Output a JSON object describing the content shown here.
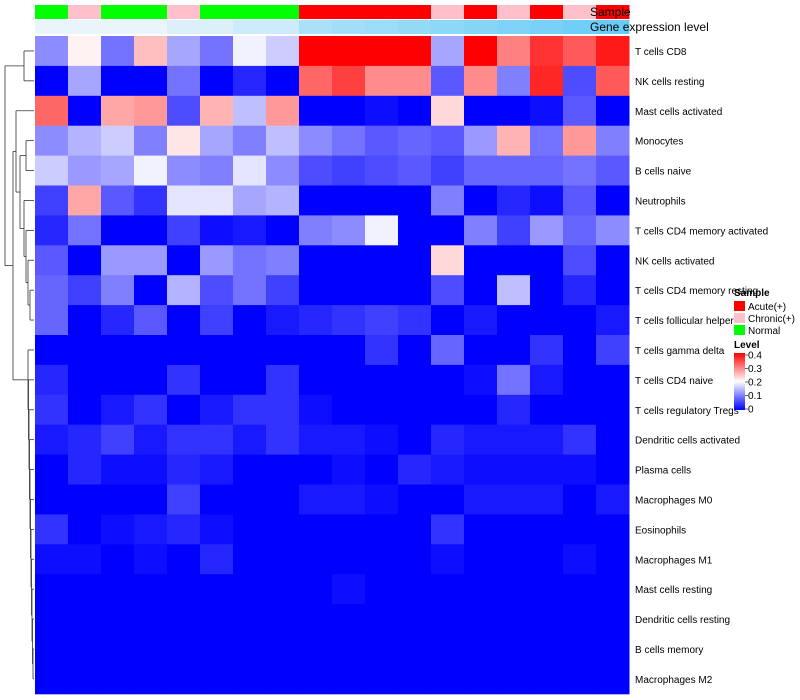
{
  "chart_data": {
    "type": "heatmap",
    "annotation_labels": {
      "sample": "Sample",
      "gene": "Gene expression level"
    },
    "sample_groups": [
      "Normal",
      "Chronic(+)",
      "Normal",
      "Normal",
      "Chronic(+)",
      "Normal",
      "Normal",
      "Normal",
      "Acute(+)",
      "Acute(+)",
      "Acute(+)",
      "Acute(+)",
      "Chronic(+)",
      "Acute(+)",
      "Chronic(+)",
      "Acute(+)",
      "Chronic(+)",
      "Acute(+)"
    ],
    "gene_expression": [
      0.0,
      0.0,
      0.0,
      0.0,
      0.1,
      0.1,
      0.2,
      0.2,
      0.45,
      0.5,
      0.55,
      0.6,
      0.65,
      0.7,
      0.75,
      0.8,
      0.85,
      0.9
    ],
    "rows": [
      "T cells CD8",
      "NK cells resting",
      "Mast cells activated",
      "Monocytes",
      "B cells naive",
      "Neutrophils",
      "T cells CD4 memory activated",
      "NK cells activated",
      "T cells CD4 memory resting",
      "T cells follicular helper",
      "T cells gamma delta",
      "T cells CD4 naive",
      "T cells regulatory  Tregs",
      "Dendritic cells activated",
      "Plasma cells",
      "Macrophages M0",
      "Eosinophils",
      "Macrophages M1",
      "Mast cells resting",
      "Dendritic cells resting",
      "B cells memory",
      "Macrophages M2"
    ],
    "values": [
      [
        0.11,
        0.21,
        0.09,
        0.25,
        0.13,
        0.09,
        0.19,
        0.16,
        0.4,
        0.4,
        0.4,
        0.4,
        0.13,
        0.4,
        0.3,
        0.36,
        0.33,
        0.38
      ],
      [
        0.0,
        0.13,
        0.0,
        0.0,
        0.09,
        0.0,
        0.03,
        0.0,
        0.32,
        0.35,
        0.29,
        0.29,
        0.07,
        0.29,
        0.1,
        0.37,
        0.06,
        0.33
      ],
      [
        0.32,
        0.0,
        0.27,
        0.28,
        0.06,
        0.26,
        0.15,
        0.28,
        0.0,
        0.0,
        0.01,
        0.0,
        0.23,
        0.0,
        0.0,
        0.01,
        0.07,
        0.0
      ],
      [
        0.11,
        0.14,
        0.16,
        0.1,
        0.22,
        0.13,
        0.1,
        0.15,
        0.11,
        0.09,
        0.07,
        0.08,
        0.07,
        0.12,
        0.26,
        0.09,
        0.28,
        0.1
      ],
      [
        0.16,
        0.12,
        0.13,
        0.19,
        0.11,
        0.1,
        0.18,
        0.11,
        0.06,
        0.05,
        0.06,
        0.07,
        0.05,
        0.08,
        0.08,
        0.08,
        0.09,
        0.07
      ],
      [
        0.05,
        0.27,
        0.07,
        0.04,
        0.18,
        0.18,
        0.13,
        0.14,
        0.0,
        0.0,
        0.0,
        0.0,
        0.1,
        0.0,
        0.03,
        0.01,
        0.07,
        0.0
      ],
      [
        0.03,
        0.09,
        0.0,
        0.0,
        0.05,
        0.01,
        0.02,
        0.0,
        0.1,
        0.11,
        0.19,
        0.0,
        0.0,
        0.1,
        0.05,
        0.12,
        0.08,
        0.11
      ],
      [
        0.07,
        0.0,
        0.12,
        0.12,
        0.0,
        0.12,
        0.09,
        0.1,
        0.0,
        0.0,
        0.0,
        0.0,
        0.23,
        0.0,
        0.0,
        0.0,
        0.06,
        0.0
      ],
      [
        0.08,
        0.05,
        0.1,
        0.0,
        0.14,
        0.06,
        0.09,
        0.05,
        0.0,
        0.0,
        0.0,
        0.0,
        0.06,
        0.0,
        0.15,
        0.0,
        0.03,
        0.0
      ],
      [
        0.08,
        0.0,
        0.03,
        0.07,
        0.0,
        0.05,
        0.0,
        0.02,
        0.03,
        0.04,
        0.05,
        0.04,
        0.0,
        0.02,
        0.0,
        0.0,
        0.0,
        0.02
      ],
      [
        0.0,
        0.0,
        0.0,
        0.0,
        0.0,
        0.0,
        0.0,
        0.0,
        0.0,
        0.0,
        0.04,
        0.0,
        0.08,
        0.0,
        0.0,
        0.04,
        0.0,
        0.05
      ],
      [
        0.03,
        0.0,
        0.0,
        0.0,
        0.04,
        0.0,
        0.0,
        0.04,
        0.0,
        0.0,
        0.0,
        0.0,
        0.0,
        0.01,
        0.09,
        0.02,
        0.0,
        0.0
      ],
      [
        0.04,
        0.0,
        0.02,
        0.04,
        0.0,
        0.02,
        0.04,
        0.04,
        0.01,
        0.0,
        0.0,
        0.0,
        0.0,
        0.0,
        0.03,
        0.0,
        0.0,
        0.0
      ],
      [
        0.02,
        0.03,
        0.05,
        0.02,
        0.04,
        0.04,
        0.02,
        0.04,
        0.02,
        0.02,
        0.01,
        0.0,
        0.03,
        0.02,
        0.02,
        0.02,
        0.04,
        0.0
      ],
      [
        0.0,
        0.03,
        0.01,
        0.01,
        0.03,
        0.02,
        0.0,
        0.0,
        0.0,
        0.01,
        0.0,
        0.03,
        0.02,
        0.01,
        0.01,
        0.01,
        0.01,
        0.0
      ],
      [
        0.0,
        0.0,
        0.0,
        0.0,
        0.05,
        0.0,
        0.0,
        0.0,
        0.02,
        0.02,
        0.01,
        0.0,
        0.0,
        0.02,
        0.02,
        0.02,
        0.0,
        0.02
      ],
      [
        0.04,
        0.0,
        0.01,
        0.02,
        0.03,
        0.01,
        0.0,
        0.0,
        0.0,
        0.0,
        0.0,
        0.0,
        0.04,
        0.0,
        0.0,
        0.0,
        0.0,
        0.0
      ],
      [
        0.01,
        0.01,
        0.0,
        0.01,
        0.0,
        0.03,
        0.0,
        0.0,
        0.0,
        0.0,
        0.0,
        0.0,
        0.01,
        0.0,
        0.0,
        0.0,
        0.01,
        0.0
      ],
      [
        0.0,
        0.0,
        0.0,
        0.0,
        0.0,
        0.0,
        0.0,
        0.0,
        0.0,
        0.01,
        0.0,
        0.0,
        0.0,
        0.0,
        0.0,
        0.0,
        0.0,
        0.0
      ],
      [
        0.0,
        0.0,
        0.0,
        0.0,
        0.0,
        0.0,
        0.0,
        0.0,
        0.0,
        0.0,
        0.0,
        0.0,
        0.0,
        0.0,
        0.0,
        0.0,
        0.0,
        0.0
      ],
      [
        0.0,
        0.0,
        0.0,
        0.0,
        0.0,
        0.0,
        0.0,
        0.0,
        0.0,
        0.0,
        0.0,
        0.0,
        0.0,
        0.0,
        0.0,
        0.0,
        0.0,
        0.0
      ],
      [
        0.0,
        0.0,
        0.0,
        0.0,
        0.0,
        0.0,
        0.0,
        0.0,
        0.0,
        0.0,
        0.0,
        0.0,
        0.0,
        0.0,
        0.0,
        0.0,
        0.0,
        0.0
      ]
    ],
    "color_scale": {
      "low": "#0000ff",
      "mid": "#ffffff",
      "high": "#ff0000",
      "range": [
        0,
        0.4
      ]
    },
    "legend": {
      "sample_title": "Sample",
      "sample_entries": [
        {
          "label": "Acute(+)",
          "color": "#ff0000"
        },
        {
          "label": "Chronic(+)",
          "color": "#ffc0cb"
        },
        {
          "label": "Normal",
          "color": "#00ff00"
        }
      ],
      "level_title": "Level",
      "level_ticks": [
        "0.4",
        "0.3",
        "0.2",
        "0.1",
        "0"
      ]
    },
    "gene_color": {
      "low": "#eaf4fb",
      "high": "#5bc8f5"
    },
    "legend_position": "right"
  }
}
